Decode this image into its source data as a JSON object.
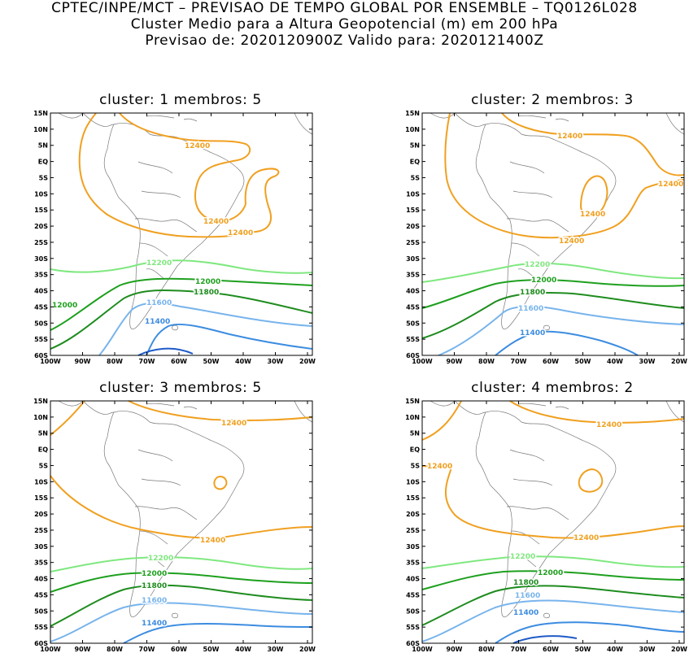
{
  "header": {
    "line1": "CPTEC/INPE/MCT – PREVISAO DE TEMPO GLOBAL POR ENSEMBLE – TQ0126L028",
    "line2": "Cluster Medio para a Altura Geopotencial (m) em 200 hPa",
    "line3": "Previsao de: 2020120900Z    Valido para: 2020121400Z"
  },
  "axes": {
    "lat_labels": [
      "15N",
      "10N",
      "5N",
      "EQ",
      "5S",
      "10S",
      "15S",
      "20S",
      "25S",
      "30S",
      "35S",
      "40S",
      "45S",
      "50S",
      "55S",
      "60S"
    ],
    "lon_labels": [
      "100W",
      "90W",
      "80W",
      "70W",
      "60W",
      "50W",
      "40W",
      "30W",
      "20W"
    ]
  },
  "colors": {
    "c12400": "#f0a020",
    "c12200": "#7fe87f",
    "c12000": "#1ea01e",
    "c11800": "#1e8c1e",
    "c11600": "#78b4ec",
    "c11400": "#3c8ce0",
    "c11200": "#1e5ac8",
    "land": "#787878"
  },
  "panels": [
    {
      "title": "cluster:  1   membros:  5",
      "labels": {
        "a": "12400",
        "b": "12400",
        "c": "12400",
        "d": "12200",
        "e": "12000",
        "f": "11800",
        "g": "12000",
        "h": "11600",
        "i": "11400"
      }
    },
    {
      "title": "cluster:  2   membros:  3",
      "labels": {
        "a": "12400",
        "b": "12400",
        "c": "12400",
        "d": "12400",
        "e": "12200",
        "f": "12000",
        "g": "11800",
        "h": "11600",
        "i": "11400"
      }
    },
    {
      "title": "cluster:  3   membros:  5",
      "labels": {
        "a": "12400",
        "b": "12400",
        "c": "12200",
        "d": "12000",
        "e": "11800",
        "f": "11600",
        "g": "11400"
      }
    },
    {
      "title": "cluster:  4   membros:  2",
      "labels": {
        "a": "12400",
        "b": "12400",
        "c": "12400",
        "d": "12200",
        "e": "12000",
        "f": "11800",
        "g": "11600",
        "h": "11400"
      }
    }
  ]
}
